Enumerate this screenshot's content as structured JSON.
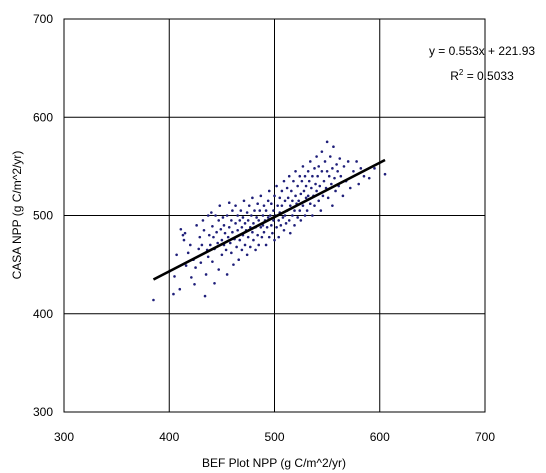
{
  "chart_data": {
    "type": "scatter",
    "title": "",
    "xlabel": "BEF Plot NPP (g C/m^2/yr)",
    "ylabel": "CASA NPP (g C/m^2/yr)",
    "xlim": [
      300,
      700
    ],
    "ylim": [
      300,
      700
    ],
    "xticks": [
      "300",
      "400",
      "500",
      "600",
      "700"
    ],
    "yticks": [
      "300",
      "400",
      "500",
      "600",
      "700"
    ],
    "grid": true,
    "marker_color": "#1f1f7a",
    "trendline": {
      "slope": 0.553,
      "intercept": 221.93,
      "x_range": [
        385,
        605
      ],
      "equation": "y = 0.553x + 221.93",
      "r2_prefix": "R",
      "r2_exp": "2",
      "r2_suffix": " = 0.5033"
    },
    "points": [
      [
        385,
        414
      ],
      [
        400,
        443
      ],
      [
        404,
        420
      ],
      [
        405,
        438
      ],
      [
        407,
        460
      ],
      [
        410,
        425
      ],
      [
        411,
        486
      ],
      [
        413,
        480
      ],
      [
        414,
        475
      ],
      [
        415,
        482
      ],
      [
        416,
        449
      ],
      [
        418,
        462
      ],
      [
        420,
        470
      ],
      [
        421,
        437
      ],
      [
        423,
        455
      ],
      [
        424,
        430
      ],
      [
        425,
        447
      ],
      [
        426,
        490
      ],
      [
        428,
        466
      ],
      [
        429,
        478
      ],
      [
        430,
        452
      ],
      [
        431,
        470
      ],
      [
        432,
        495
      ],
      [
        433,
        485
      ],
      [
        434,
        418
      ],
      [
        435,
        440
      ],
      [
        436,
        465
      ],
      [
        437,
        500
      ],
      [
        437,
        458
      ],
      [
        438,
        480
      ],
      [
        439,
        470
      ],
      [
        440,
        503
      ],
      [
        441,
        453
      ],
      [
        441,
        489
      ],
      [
        442,
        478
      ],
      [
        443,
        431
      ],
      [
        443,
        466
      ],
      [
        444,
        500
      ],
      [
        445,
        483
      ],
      [
        446,
        472
      ],
      [
        447,
        495
      ],
      [
        447,
        445
      ],
      [
        448,
        510
      ],
      [
        449,
        486
      ],
      [
        450,
        475
      ],
      [
        450,
        460
      ],
      [
        451,
        498
      ],
      [
        452,
        470
      ],
      [
        452,
        490
      ],
      [
        453,
        482
      ],
      [
        454,
        465
      ],
      [
        455,
        500
      ],
      [
        455,
        440
      ],
      [
        456,
        478
      ],
      [
        457,
        513
      ],
      [
        457,
        488
      ],
      [
        458,
        472
      ],
      [
        459,
        495
      ],
      [
        459,
        462
      ],
      [
        460,
        505
      ],
      [
        460,
        483
      ],
      [
        461,
        450
      ],
      [
        462,
        476
      ],
      [
        463,
        492
      ],
      [
        463,
        510
      ],
      [
        464,
        468
      ],
      [
        465,
        500
      ],
      [
        465,
        485
      ],
      [
        466,
        455
      ],
      [
        467,
        495
      ],
      [
        467,
        475
      ],
      [
        468,
        505
      ],
      [
        469,
        488
      ],
      [
        469,
        465
      ],
      [
        470,
        498
      ],
      [
        470,
        480
      ],
      [
        471,
        515
      ],
      [
        472,
        492
      ],
      [
        472,
        470
      ],
      [
        473,
        485
      ],
      [
        474,
        503
      ],
      [
        474,
        460
      ],
      [
        475,
        495
      ],
      [
        475,
        478
      ],
      [
        476,
        510
      ],
      [
        477,
        488
      ],
      [
        477,
        468
      ],
      [
        478,
        500
      ],
      [
        479,
        483
      ],
      [
        479,
        518
      ],
      [
        480,
        492
      ],
      [
        480,
        475
      ],
      [
        481,
        505
      ],
      [
        482,
        465
      ],
      [
        482,
        488
      ],
      [
        483,
        498
      ],
      [
        484,
        512
      ],
      [
        484,
        480
      ],
      [
        485,
        495
      ],
      [
        485,
        470
      ],
      [
        486,
        505
      ],
      [
        487,
        488
      ],
      [
        487,
        520
      ],
      [
        488,
        478
      ],
      [
        489,
        500
      ],
      [
        489,
        490
      ],
      [
        490,
        510
      ],
      [
        490,
        483
      ],
      [
        491,
        495
      ],
      [
        492,
        470
      ],
      [
        492,
        505
      ],
      [
        493,
        488
      ],
      [
        494,
        515
      ],
      [
        494,
        498
      ],
      [
        495,
        478
      ],
      [
        495,
        525
      ],
      [
        496,
        500
      ],
      [
        497,
        490
      ],
      [
        497,
        512
      ],
      [
        498,
        482
      ],
      [
        499,
        505
      ],
      [
        499,
        495
      ],
      [
        500,
        520
      ],
      [
        500,
        475
      ],
      [
        501,
        500
      ],
      [
        502,
        488
      ],
      [
        502,
        530
      ],
      [
        503,
        510
      ],
      [
        504,
        495
      ],
      [
        504,
        478
      ],
      [
        505,
        518
      ],
      [
        505,
        503
      ],
      [
        506,
        490
      ],
      [
        507,
        525
      ],
      [
        507,
        510
      ],
      [
        508,
        498
      ],
      [
        509,
        485
      ],
      [
        509,
        535
      ],
      [
        510,
        515
      ],
      [
        510,
        500
      ],
      [
        511,
        492
      ],
      [
        512,
        528
      ],
      [
        512,
        505
      ],
      [
        513,
        518
      ],
      [
        514,
        495
      ],
      [
        514,
        540
      ],
      [
        515,
        510
      ],
      [
        515,
        482
      ],
      [
        516,
        525
      ],
      [
        517,
        500
      ],
      [
        517,
        515
      ],
      [
        518,
        535
      ],
      [
        519,
        505
      ],
      [
        519,
        490
      ],
      [
        520,
        520
      ],
      [
        520,
        545
      ],
      [
        521,
        512
      ],
      [
        522,
        498
      ],
      [
        522,
        530
      ],
      [
        523,
        515
      ],
      [
        524,
        540
      ],
      [
        524,
        505
      ],
      [
        525,
        522
      ],
      [
        525,
        495
      ],
      [
        526,
        535
      ],
      [
        527,
        510
      ],
      [
        527,
        550
      ],
      [
        528,
        525
      ],
      [
        529,
        500
      ],
      [
        529,
        540
      ],
      [
        530,
        518
      ],
      [
        530,
        530
      ],
      [
        531,
        505
      ],
      [
        532,
        545
      ],
      [
        532,
        520
      ],
      [
        533,
        535
      ],
      [
        534,
        512
      ],
      [
        534,
        555
      ],
      [
        535,
        528
      ],
      [
        536,
        500
      ],
      [
        536,
        540
      ],
      [
        537,
        520
      ],
      [
        538,
        548
      ],
      [
        538,
        510
      ],
      [
        539,
        532
      ],
      [
        540,
        560
      ],
      [
        540,
        525
      ],
      [
        541,
        540
      ],
      [
        542,
        515
      ],
      [
        542,
        550
      ],
      [
        543,
        530
      ],
      [
        544,
        505
      ],
      [
        545,
        545
      ],
      [
        545,
        565
      ],
      [
        546,
        520
      ],
      [
        547,
        535
      ],
      [
        548,
        555
      ],
      [
        549,
        528
      ],
      [
        550,
        545
      ],
      [
        550,
        575
      ],
      [
        551,
        518
      ],
      [
        552,
        540
      ],
      [
        553,
        560
      ],
      [
        554,
        532
      ],
      [
        555,
        548
      ],
      [
        555,
        510
      ],
      [
        556,
        570
      ],
      [
        557,
        538
      ],
      [
        558,
        525
      ],
      [
        559,
        552
      ],
      [
        560,
        545
      ],
      [
        561,
        530
      ],
      [
        562,
        558
      ],
      [
        563,
        540
      ],
      [
        565,
        520
      ],
      [
        566,
        550
      ],
      [
        568,
        535
      ],
      [
        570,
        555
      ],
      [
        572,
        528
      ],
      [
        575,
        545
      ],
      [
        578,
        555
      ],
      [
        580,
        532
      ],
      [
        582,
        548
      ],
      [
        585,
        540
      ],
      [
        590,
        538
      ],
      [
        595,
        548
      ],
      [
        605,
        542
      ]
    ]
  }
}
